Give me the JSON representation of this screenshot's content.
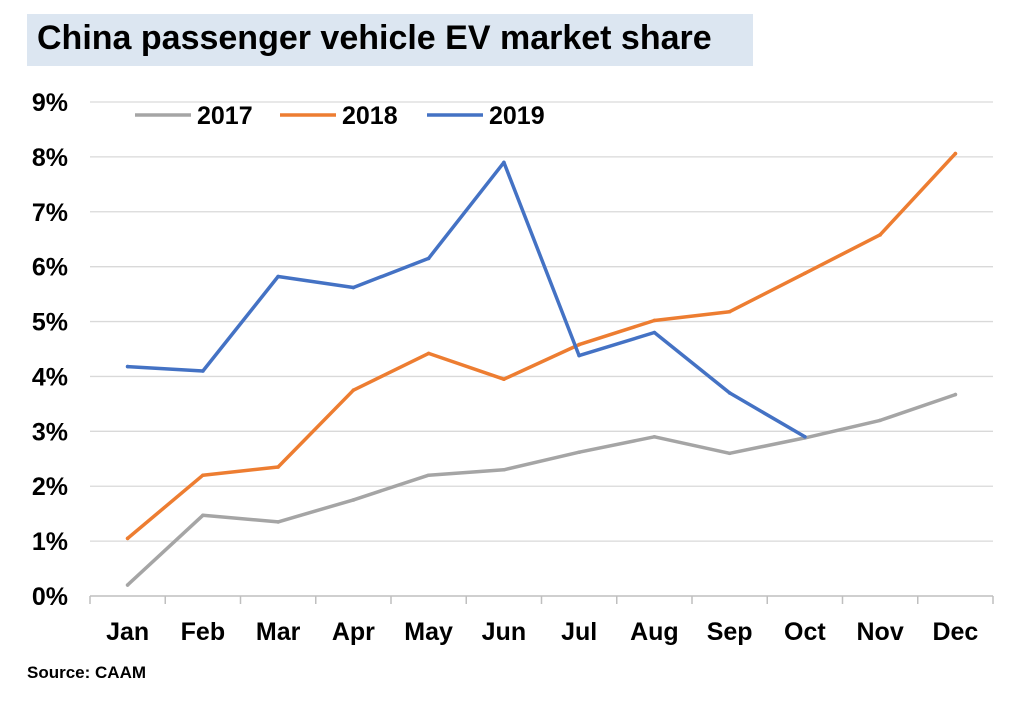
{
  "chart_data": {
    "type": "line",
    "title": "China passenger vehicle EV market share",
    "source": "Source: CAAM",
    "categories": [
      "Jan",
      "Feb",
      "Mar",
      "Apr",
      "May",
      "Jun",
      "Jul",
      "Aug",
      "Sep",
      "Oct",
      "Nov",
      "Dec"
    ],
    "yticks": [
      "0%",
      "1%",
      "2%",
      "3%",
      "4%",
      "5%",
      "6%",
      "7%",
      "8%",
      "9%"
    ],
    "ylim": [
      0,
      9
    ],
    "grid": true,
    "legend_position": "top-left",
    "series": [
      {
        "name": "2017",
        "color": "#a5a5a5",
        "values": [
          0.2,
          1.47,
          1.35,
          1.75,
          2.2,
          2.3,
          2.62,
          2.9,
          2.6,
          2.88,
          3.2,
          3.67
        ]
      },
      {
        "name": "2018",
        "color": "#ed7d31",
        "values": [
          1.05,
          2.2,
          2.35,
          3.75,
          4.42,
          3.95,
          4.58,
          5.02,
          5.18,
          5.88,
          6.58,
          8.06
        ]
      },
      {
        "name": "2019",
        "color": "#4472c4",
        "values": [
          4.18,
          4.1,
          5.82,
          5.62,
          6.15,
          7.9,
          4.38,
          4.8,
          3.7,
          2.9,
          null,
          null
        ]
      }
    ]
  }
}
